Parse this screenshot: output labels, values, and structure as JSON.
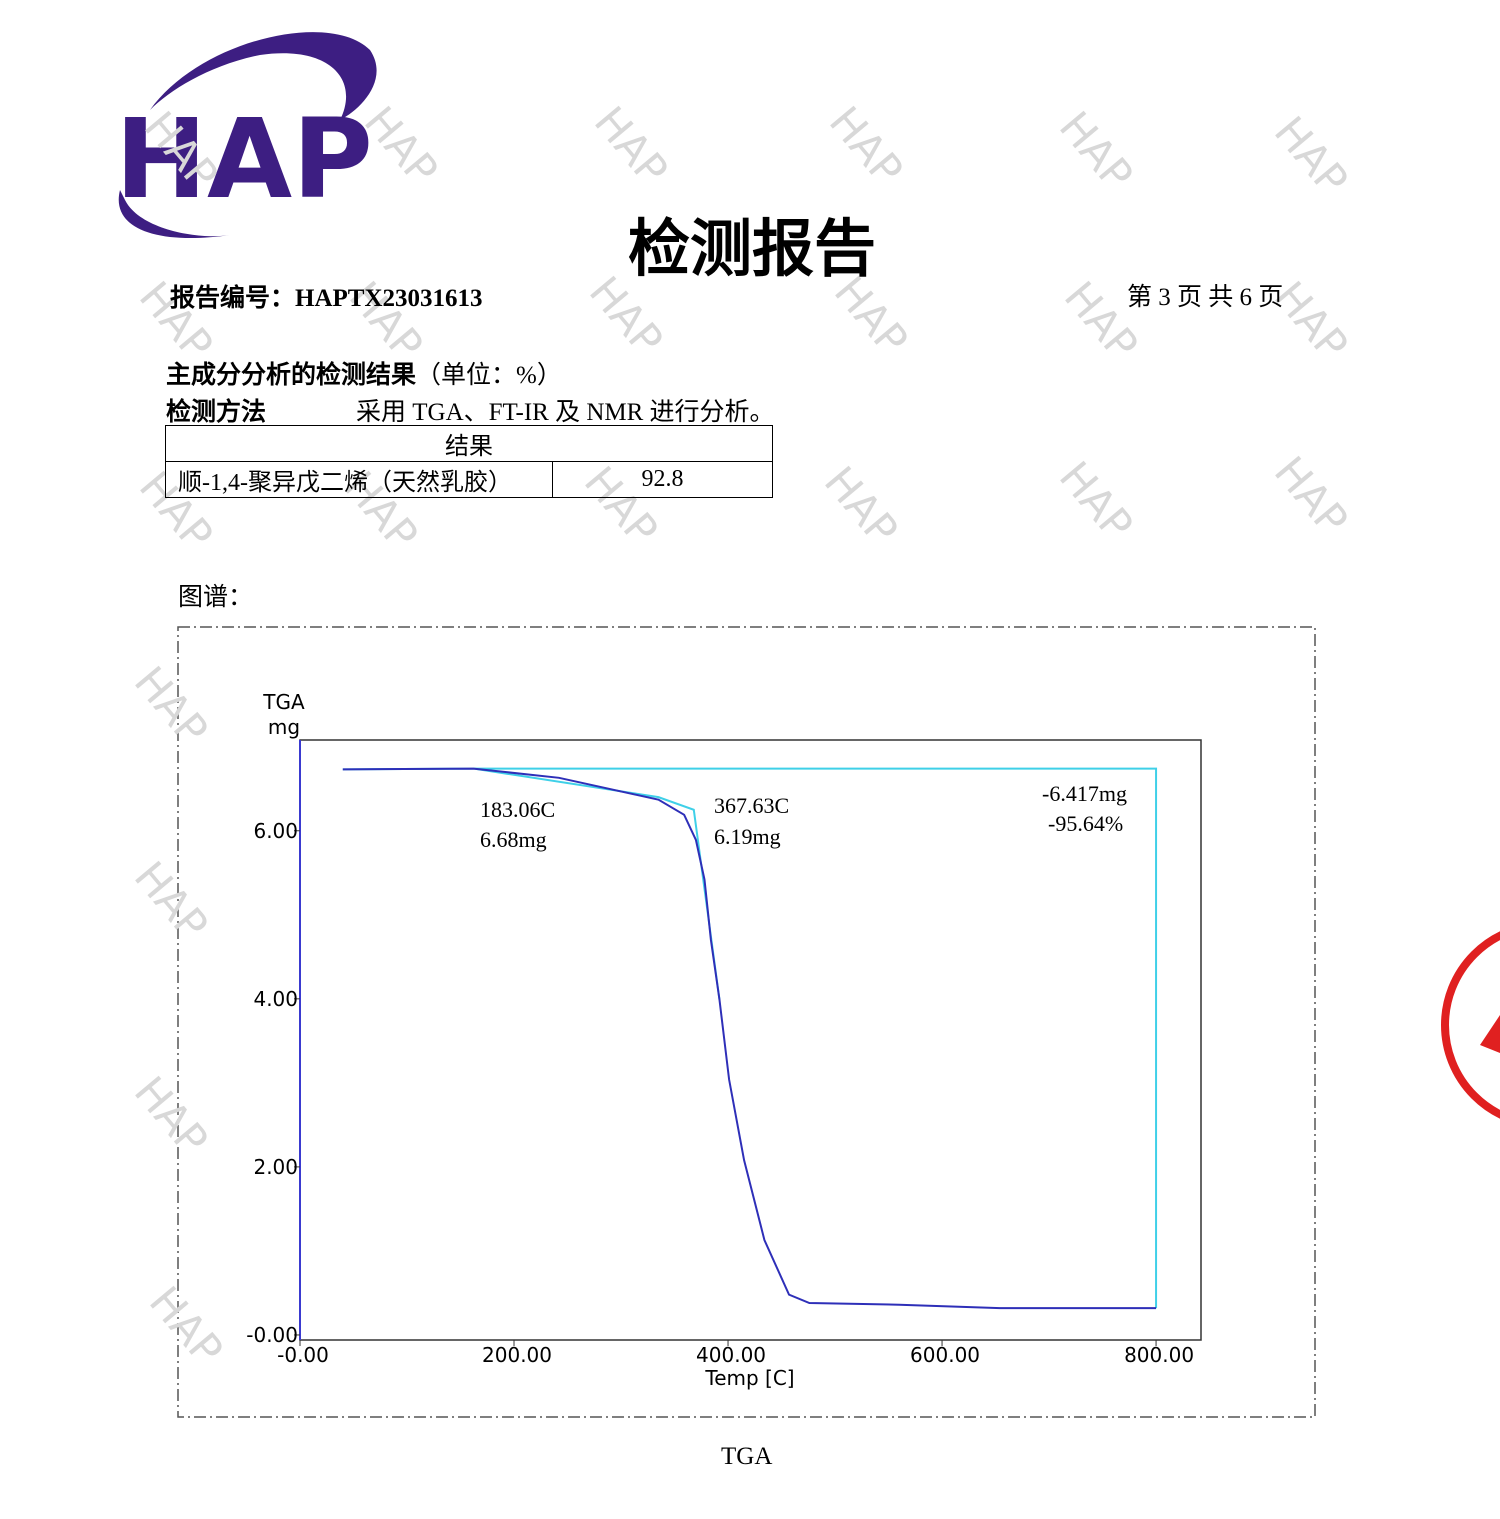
{
  "logo": "HAP",
  "watermark": "HAP",
  "title": "检测报告",
  "report_no": "报告编号：HAPTX23031613",
  "page_info": "第 3 页 共 6 页",
  "section": {
    "heading": "主成分分析的检测结果",
    "unit": "（单位：%）"
  },
  "method": {
    "label": "检测方法",
    "text": "采用 TGA、FT-IR 及 NMR 进行分析。"
  },
  "table": {
    "header": "结果",
    "rows": [
      [
        "顺-1,4-聚异戊二烯（天然乳胶）",
        92.8
      ]
    ]
  },
  "figure_label": "图谱：",
  "chart_data": {
    "type": "line",
    "y_label": [
      "TGA",
      "mg"
    ],
    "x_label": "Temp [C]",
    "xlim": [
      0,
      842
    ],
    "ylim": [
      -0.06,
      7.08
    ],
    "xticks": [
      {
        "value": 0,
        "label": "-0.00"
      },
      {
        "value": 200,
        "label": "200.00"
      },
      {
        "value": 400,
        "label": "400.00"
      },
      {
        "value": 600,
        "label": "600.00"
      },
      {
        "value": 800,
        "label": "800.00"
      }
    ],
    "yticks": [
      {
        "value": 0,
        "label": "-0.00"
      },
      {
        "value": 2,
        "label": "2.00"
      },
      {
        "value": 4,
        "label": "4.00"
      },
      {
        "value": 6,
        "label": "6.00"
      }
    ],
    "series": [
      {
        "color": "#2e2fb8",
        "x": [
          40,
          162,
          242,
          335,
          359,
          370,
          378,
          384,
          392,
          401,
          415,
          434,
          457,
          476,
          560,
          654,
          800
        ],
        "values": [
          6.73,
          6.74,
          6.63,
          6.37,
          6.19,
          5.89,
          5.42,
          4.7,
          3.99,
          3.04,
          2.08,
          1.13,
          0.48,
          0.38,
          0.36,
          0.32,
          0.32
        ]
      },
      {
        "color": "#3fd0e8",
        "x": [
          40,
          162,
          335,
          368,
          392,
          null,
          162,
          800,
          800
        ],
        "values": [
          6.73,
          6.74,
          6.4,
          6.25,
          3.99,
          null,
          6.74,
          6.74,
          0.32
        ]
      }
    ],
    "annotations": [
      "183.06C",
      "6.68mg",
      "367.63C",
      "6.19mg",
      "-6.417mg",
      "-95.64%"
    ]
  },
  "caption": "TGA"
}
